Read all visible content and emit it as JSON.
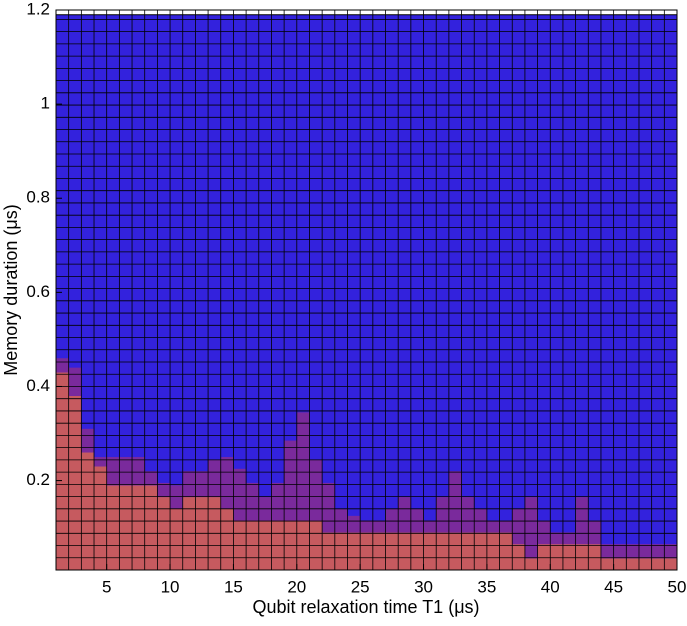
{
  "chart_data": {
    "type": "stacked-cells",
    "x_label": "Qubit relaxation time T1 (μs)",
    "y_label": "Memory duration (μs)",
    "x": [
      1,
      2,
      3,
      4,
      5,
      6,
      7,
      8,
      9,
      10,
      11,
      12,
      13,
      14,
      15,
      16,
      17,
      18,
      19,
      20,
      21,
      22,
      23,
      24,
      25,
      26,
      27,
      28,
      29,
      30,
      31,
      32,
      33,
      34,
      35,
      36,
      37,
      38,
      39,
      40,
      41,
      42,
      43,
      44,
      45,
      46,
      47,
      48,
      49
    ],
    "cell_width": 1,
    "cell_height": 0.026,
    "series": [
      {
        "color": "#c65a5f",
        "values": [
          0.42,
          0.37,
          0.25,
          0.22,
          0.18,
          0.18,
          0.18,
          0.18,
          0.155,
          0.13,
          0.155,
          0.155,
          0.155,
          0.13,
          0.105,
          0.105,
          0.105,
          0.105,
          0.105,
          0.105,
          0.105,
          0.08,
          0.08,
          0.08,
          0.08,
          0.08,
          0.08,
          0.08,
          0.08,
          0.08,
          0.08,
          0.08,
          0.08,
          0.08,
          0.08,
          0.08,
          0.055,
          0.025,
          0.055,
          0.055,
          0.055,
          0.055,
          0.055,
          0.025,
          0.025,
          0.025,
          0.025,
          0.025,
          0.025
        ]
      },
      {
        "color": "#7a2a9c",
        "values": [
          0.03,
          0.06,
          0.05,
          0.02,
          0.06,
          0.06,
          0.06,
          0.03,
          0.03,
          0.05,
          0.055,
          0.055,
          0.08,
          0.11,
          0.11,
          0.08,
          0.05,
          0.08,
          0.17,
          0.23,
          0.13,
          0.105,
          0.05,
          0.035,
          0.025,
          0.025,
          0.05,
          0.075,
          0.05,
          0.025,
          0.075,
          0.13,
          0.075,
          0.05,
          0.025,
          0.025,
          0.075,
          0.13,
          0.05,
          0.025,
          0.025,
          0.1,
          0.05,
          0.03,
          0.03,
          0.03,
          0.03,
          0.03,
          0.03
        ]
      }
    ],
    "background_color": "#3322dd",
    "filled_top": 1.19,
    "xlim": [
      1,
      50
    ],
    "ylim": [
      0.01,
      1.2
    ],
    "xticks": [
      5,
      10,
      15,
      20,
      25,
      30,
      35,
      40,
      45,
      50
    ],
    "yticks": [
      0.2,
      0.4,
      0.6,
      0.8,
      1,
      1.2
    ]
  }
}
